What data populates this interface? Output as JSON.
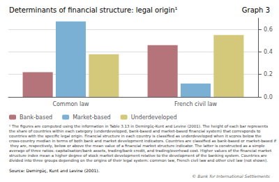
{
  "chart_data": {
    "type": "bar",
    "title": "Determinants of financial structure: legal origin¹",
    "graph_label": "Graph 3",
    "categories": [
      "Common law",
      "French civil law"
    ],
    "series": [
      {
        "name": "Bank-based",
        "color": "#b5737a",
        "values": [
          0.22,
          0.46
        ]
      },
      {
        "name": "Market-based",
        "color": "#7ab0d4",
        "values": [
          0.67,
          0.12
        ]
      },
      {
        "name": "Underdeveloped",
        "color": "#d4c97a",
        "values": [
          0.38,
          0.55
        ]
      }
    ],
    "ylim": [
      0,
      0.7
    ],
    "yticks": [
      {
        "value": 0,
        "label": "0.0"
      },
      0.2,
      0.4,
      0.6
    ],
    "grid": true,
    "legend": "bottom",
    "footnote": "¹ The figures are computed using the information in Table 3.13 in Demirgüç-Kunt and Levine (2001). The height of each bar represents the share of countries within each category (underdeveloped, bank-based and market-based financial system) that corresponds to countries with the specific legal origin. Financial structure in each country is classified as underdeveloped when it scores below the cross-country median in terms of both bank and market development indicators. Countries are classified as bank-based or market-based if they are, respectively, below or above the mean value of a financial market structure indicator. The latter is constructed as a simple average of three ratios: capitalisation/bank assets, trading/bank credit, and trading/overhead cost. Higher values of the financial market structure index mean a higher degree of stock market development relative to the development of the banking system. Countries are divided into three groups depending on the origins of their legal system: common law, French civil law and other civil law (not shown).",
    "source": "Source: Demirgüç, Kunt and Levine (2001).",
    "copyright": "© Bank for International Settlements"
  }
}
